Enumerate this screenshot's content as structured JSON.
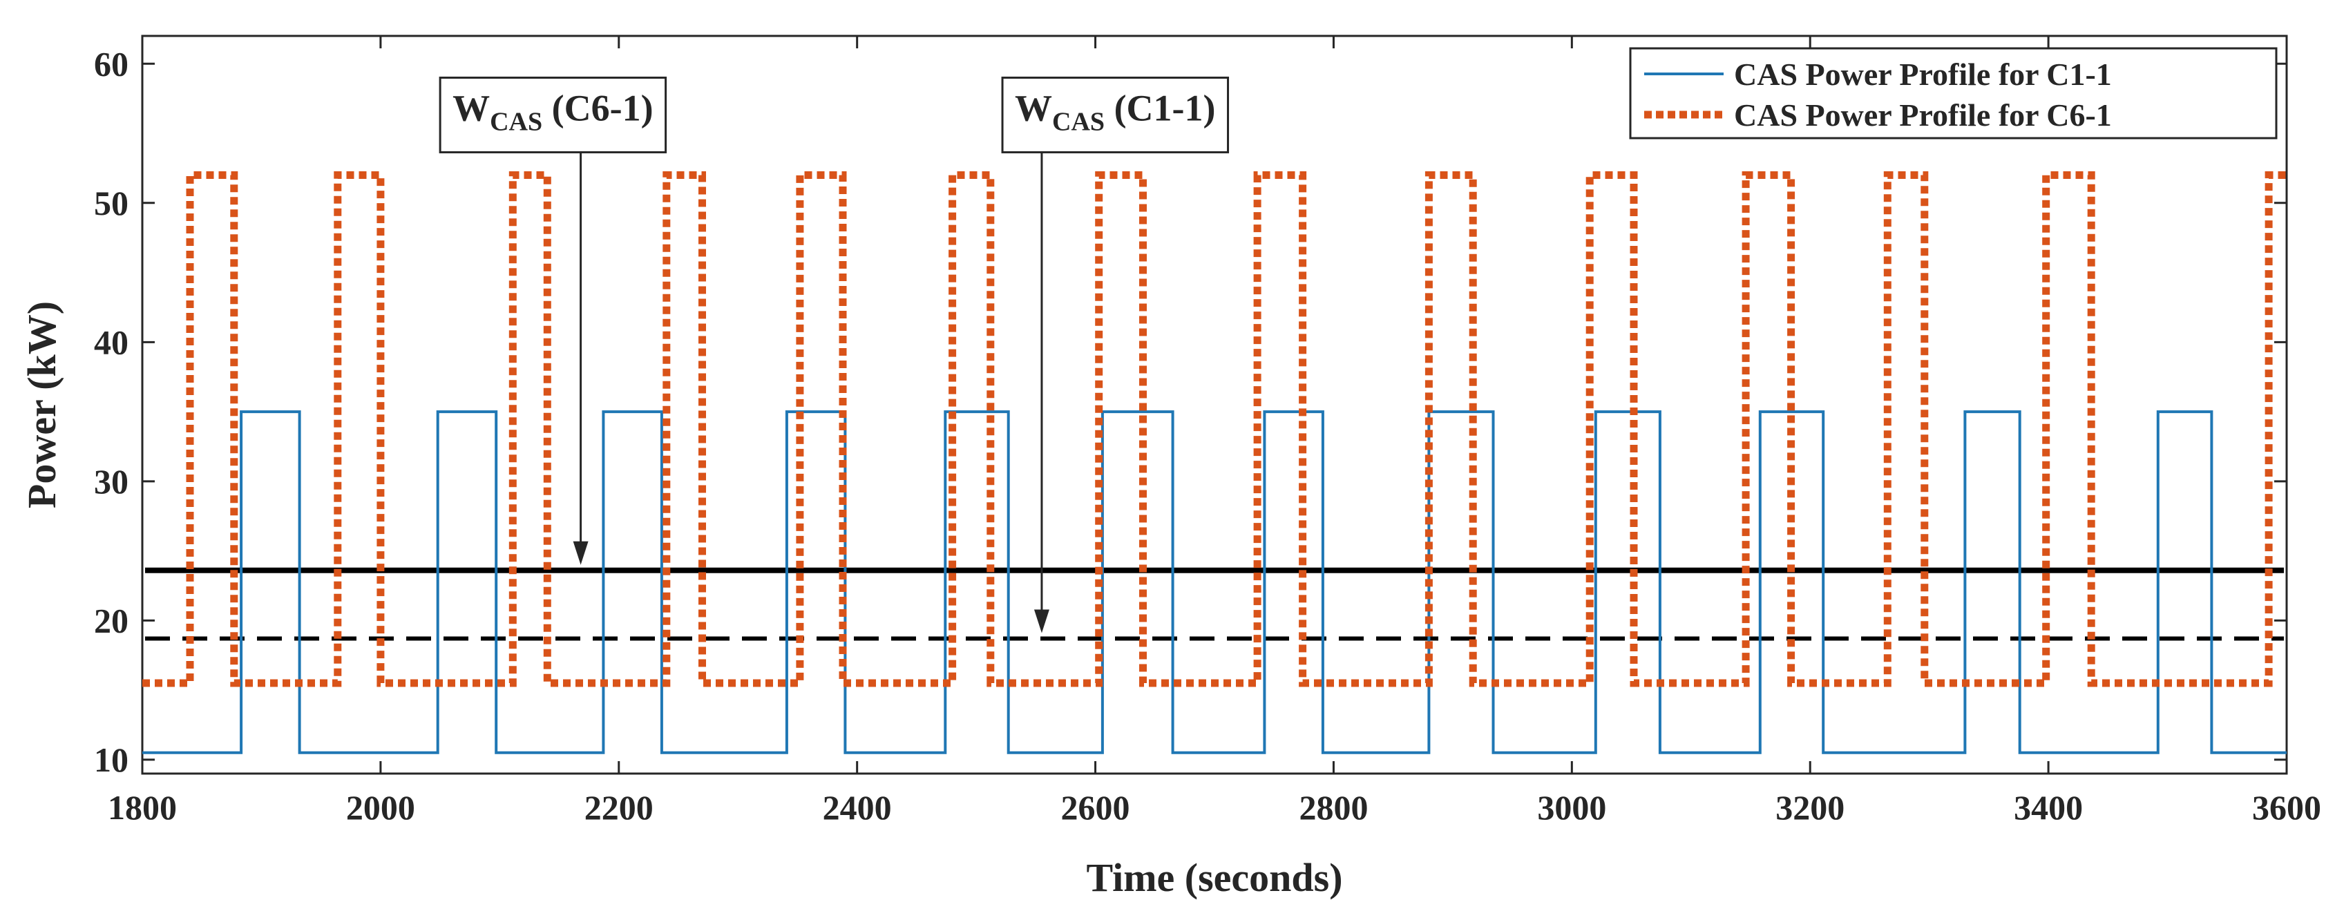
{
  "chart_data": {
    "type": "line",
    "xlabel": "Time (seconds)",
    "ylabel": "Power (kW)",
    "xlim": [
      1800,
      3600
    ],
    "ylim": [
      9,
      62
    ],
    "xticks": [
      1800,
      2000,
      2200,
      2400,
      2600,
      2800,
      3000,
      3200,
      3400,
      3600
    ],
    "yticks": [
      10,
      20,
      30,
      40,
      50,
      60
    ],
    "grid": false,
    "legend_position": "top-right",
    "colors": {
      "c1": "#1f77b4",
      "c6": "#d95319",
      "ref": "#000000"
    },
    "series": [
      {
        "name": "CAS Power Profile for C1-1",
        "style": "solid",
        "low": 10.5,
        "high": 35,
        "on_intervals": [
          [
            1883,
            1932
          ],
          [
            2048,
            2097
          ],
          [
            2187,
            2236
          ],
          [
            2341,
            2390
          ],
          [
            2474,
            2527
          ],
          [
            2606,
            2665
          ],
          [
            2742,
            2791
          ],
          [
            2880,
            2934
          ],
          [
            3020,
            3074
          ],
          [
            3158,
            3211
          ],
          [
            3330,
            3376
          ],
          [
            3492,
            3537
          ]
        ]
      },
      {
        "name": "CAS Power Profile for C6-1",
        "style": "dotted",
        "low": 15.5,
        "high": 52,
        "on_intervals": [
          [
            1840,
            1877
          ],
          [
            1964,
            2000
          ],
          [
            2111,
            2140
          ],
          [
            2240,
            2270
          ],
          [
            2352,
            2388
          ],
          [
            2480,
            2512
          ],
          [
            2603,
            2640
          ],
          [
            2736,
            2774
          ],
          [
            2880,
            2917
          ],
          [
            3015,
            3052
          ],
          [
            3146,
            3184
          ],
          [
            3265,
            3296
          ],
          [
            3398,
            3436
          ],
          [
            3585,
            3600
          ]
        ]
      }
    ],
    "reference_lines": [
      {
        "name": "W_CAS (C6-1)",
        "y": 23.6,
        "style": "solid"
      },
      {
        "name": "W_CAS (C1-1)",
        "y": 18.7,
        "style": "dashed"
      }
    ],
    "annotations": [
      {
        "main": "W",
        "sub": "CAS",
        "tail": " (C6-1)",
        "x": 2050,
        "y": 59,
        "arrow_x": 2168,
        "arrow_to_y": 23.6
      },
      {
        "main": "W",
        "sub": "CAS",
        "tail": " (C1-1)",
        "x": 2522,
        "y": 59,
        "arrow_x": 2555,
        "arrow_to_y": 18.7
      }
    ]
  }
}
